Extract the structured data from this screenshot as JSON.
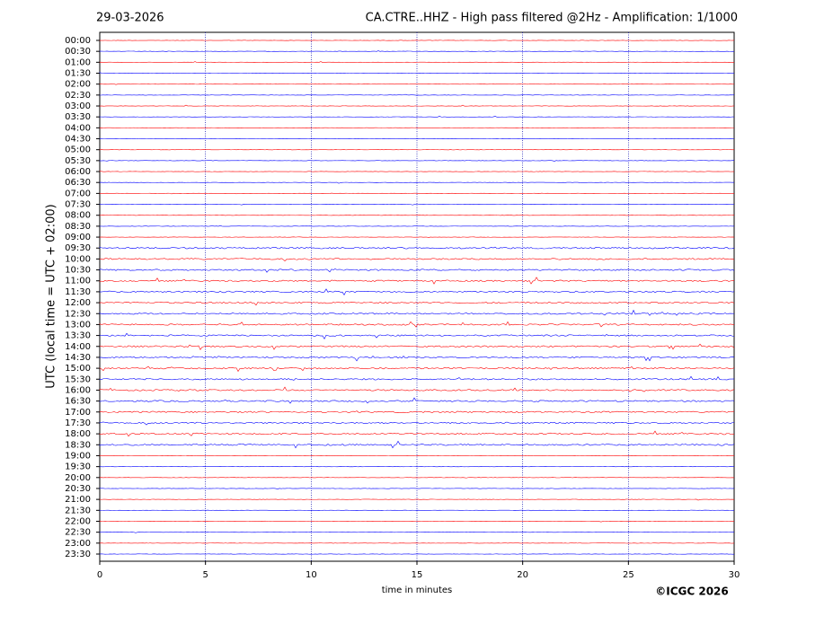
{
  "chart_data": {
    "type": "helicorder",
    "date": "29-03-2026",
    "title": "CA.CTRE..HHZ - High pass filtered @2Hz - Amplification: 1/1000",
    "ylabel": "UTC (local time = UTC + 02:00)",
    "xlabel": "time in minutes",
    "copyright": "©ICGC 2026",
    "categories": [
      "00:00",
      "00:30",
      "01:00",
      "01:30",
      "02:00",
      "02:30",
      "03:00",
      "03:30",
      "04:00",
      "04:30",
      "05:00",
      "05:30",
      "06:00",
      "06:30",
      "07:00",
      "07:30",
      "08:00",
      "08:30",
      "09:00",
      "09:30",
      "10:00",
      "10:30",
      "11:00",
      "11:30",
      "12:00",
      "12:30",
      "13:00",
      "13:30",
      "14:00",
      "14:30",
      "15:00",
      "15:30",
      "16:00",
      "16:30",
      "17:00",
      "17:30",
      "18:00",
      "18:30",
      "19:00",
      "19:30",
      "20:00",
      "20:30",
      "21:00",
      "21:30",
      "22:00",
      "22:30",
      "23:00",
      "23:30"
    ],
    "xlim": [
      0,
      30
    ],
    "xticks": [
      0,
      5,
      10,
      15,
      20,
      25,
      30
    ],
    "colors": [
      "#ff0000",
      "#0000ff"
    ],
    "grid": true
  }
}
